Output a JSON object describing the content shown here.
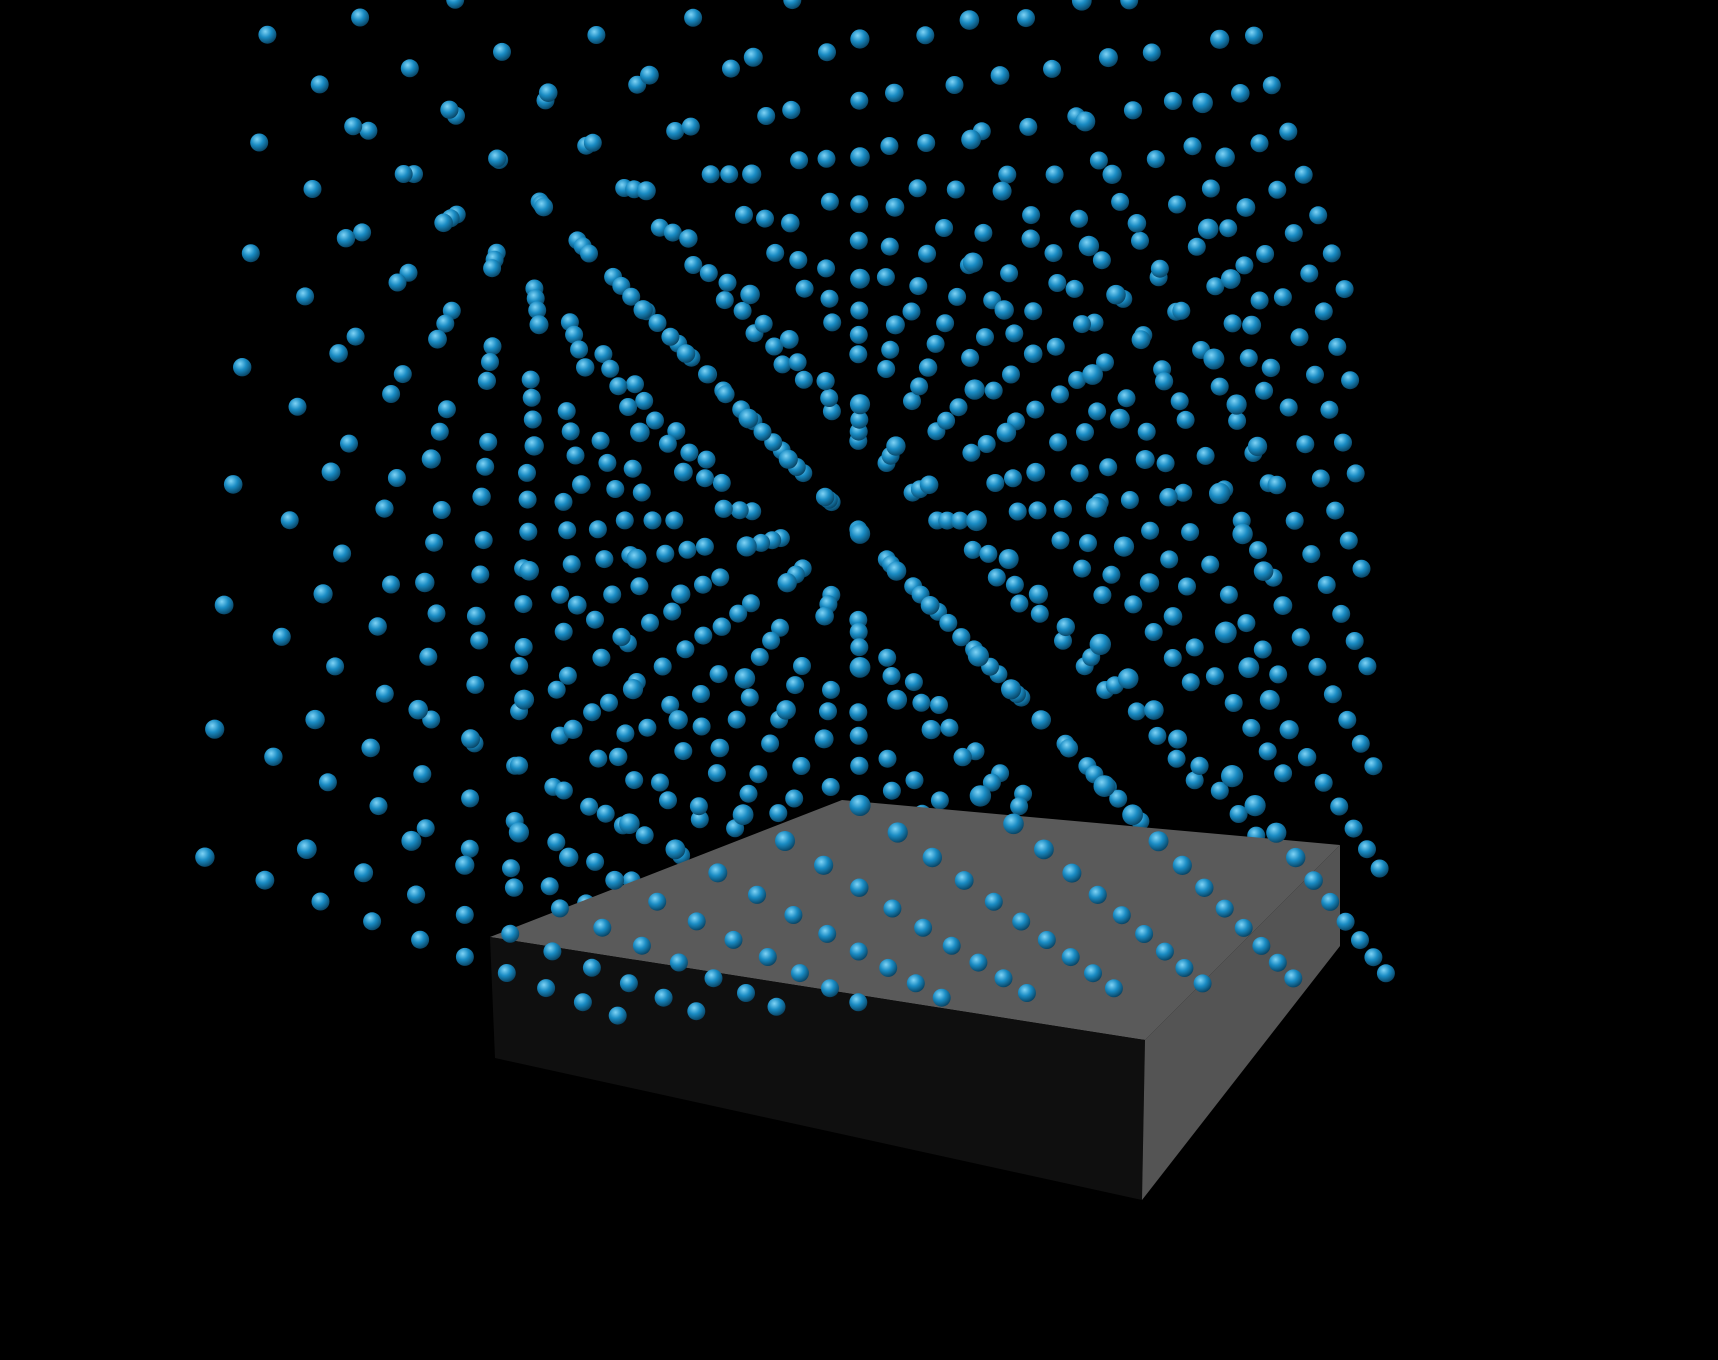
{
  "scene": {
    "background_color": "#000000",
    "sphere_color": "#1a8cc4",
    "sphere_highlight_color": "#7fd3f5",
    "sphere_shadow_color": "#063a57",
    "slab_top_color": "#5a5a5a",
    "slab_front_color": "#0f0f0f",
    "slab_side_color": "#545454",
    "grid": {
      "nx": 10,
      "nz": 10,
      "layers": 7
    }
  }
}
